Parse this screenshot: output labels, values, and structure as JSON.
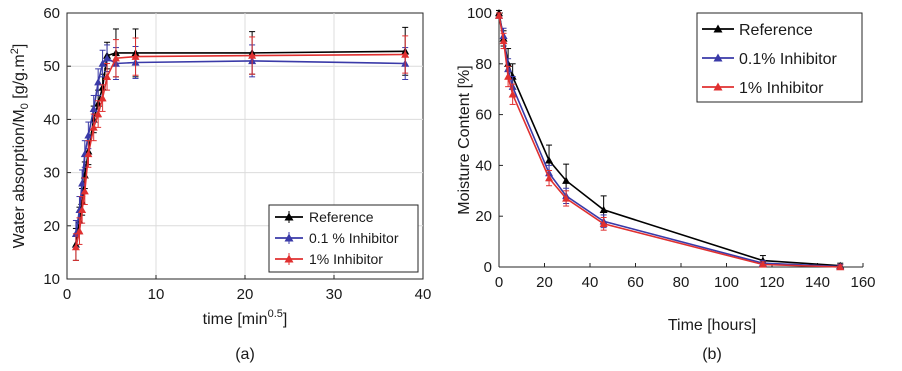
{
  "chart_data": [
    {
      "type": "line",
      "panel": "(a)",
      "xlabel": "time [min",
      "xlabel_sup": "0.5",
      "xlabel_end": "]",
      "ylabel": "Water absorption/M",
      "ylabel_sub": "0",
      "ylabel_end": " [g/g.m",
      "ylabel_sup": "2",
      "ylabel_close": "]",
      "xlim": [
        0,
        40
      ],
      "ylim": [
        10,
        60
      ],
      "xticks": [
        0,
        10,
        20,
        30,
        40
      ],
      "yticks": [
        10,
        20,
        30,
        40,
        50,
        60
      ],
      "grid": true,
      "legend_position": "bottom-right",
      "series": [
        {
          "name": "Reference",
          "color": "#000000",
          "x": [
            1.0,
            1.4,
            1.7,
            2.0,
            2.4,
            3.0,
            3.5,
            4.0,
            4.5,
            5.5,
            7.7,
            20.8,
            38.0
          ],
          "y": [
            16.5,
            21,
            24.5,
            29.5,
            34,
            40,
            43,
            46,
            52,
            52.5,
            52.5,
            52.5,
            52.8
          ],
          "err": [
            3,
            2.5,
            2.5,
            2.5,
            2.5,
            2.5,
            2.5,
            2.5,
            2.5,
            4.5,
            4.5,
            4,
            4.5
          ]
        },
        {
          "name": "0.1 % Inhibitor",
          "color": "#3a3aa8",
          "x": [
            1.0,
            1.4,
            1.7,
            2.0,
            2.4,
            3.0,
            3.5,
            4.0,
            4.5,
            5.5,
            7.7,
            20.8,
            38.0
          ],
          "y": [
            18.5,
            23,
            28,
            33.5,
            37,
            42,
            47,
            50.5,
            51.5,
            50.5,
            50.7,
            51,
            50.5
          ],
          "err": [
            2.5,
            2.5,
            2.5,
            2.5,
            2.5,
            2.5,
            2.5,
            2.5,
            2.5,
            3,
            3,
            3,
            3
          ]
        },
        {
          "name": "1% Inhibitor",
          "color": "#e03030",
          "x": [
            1.0,
            1.4,
            1.7,
            2.0,
            2.4,
            3.0,
            3.5,
            4.0,
            4.5,
            5.5,
            7.7,
            20.8,
            38.0
          ],
          "y": [
            16,
            19,
            23,
            26.5,
            33.5,
            38.5,
            41,
            44,
            48,
            51.5,
            51.8,
            52,
            52.2
          ],
          "err": [
            2.5,
            2.5,
            2.5,
            2.5,
            2.5,
            2.5,
            2.5,
            2.5,
            2.5,
            3.5,
            3.5,
            3.5,
            3.5
          ]
        }
      ]
    },
    {
      "type": "line",
      "panel": "(b)",
      "xlabel": "Time [hours]",
      "ylabel": "Moisture Content [%]",
      "xlim": [
        0,
        160
      ],
      "ylim": [
        0,
        100
      ],
      "xticks": [
        0,
        20,
        40,
        60,
        80,
        100,
        120,
        140,
        160
      ],
      "yticks": [
        0,
        20,
        40,
        60,
        80,
        100
      ],
      "grid": false,
      "legend_position": "top-right",
      "series": [
        {
          "name": "Reference",
          "color": "#000000",
          "x": [
            0,
            2,
            4,
            6,
            22,
            29.5,
            46,
            116,
            150
          ],
          "y": [
            100,
            90,
            80,
            75,
            42,
            34,
            22.5,
            2.5,
            0.5
          ],
          "err": [
            1,
            3,
            6,
            5,
            6,
            6.5,
            5.5,
            2,
            1
          ]
        },
        {
          "name": "0.1% Inhibitor",
          "color": "#3a3aa8",
          "x": [
            0,
            2,
            4,
            6,
            22,
            29.5,
            46,
            116,
            150
          ],
          "y": [
            99,
            91,
            78,
            71,
            37,
            28,
            18,
            1.5,
            0.2
          ],
          "err": [
            1,
            3,
            4,
            4,
            3,
            3,
            2.5,
            1,
            0.8
          ]
        },
        {
          "name": "1% Inhibitor",
          "color": "#e03030",
          "x": [
            0,
            2,
            4,
            6,
            22,
            29.5,
            46,
            116,
            150
          ],
          "y": [
            99,
            89,
            75,
            68,
            35,
            27,
            17,
            1,
            0
          ],
          "err": [
            1,
            3,
            4,
            4,
            3,
            3,
            2.5,
            1,
            0.8
          ]
        }
      ]
    }
  ]
}
